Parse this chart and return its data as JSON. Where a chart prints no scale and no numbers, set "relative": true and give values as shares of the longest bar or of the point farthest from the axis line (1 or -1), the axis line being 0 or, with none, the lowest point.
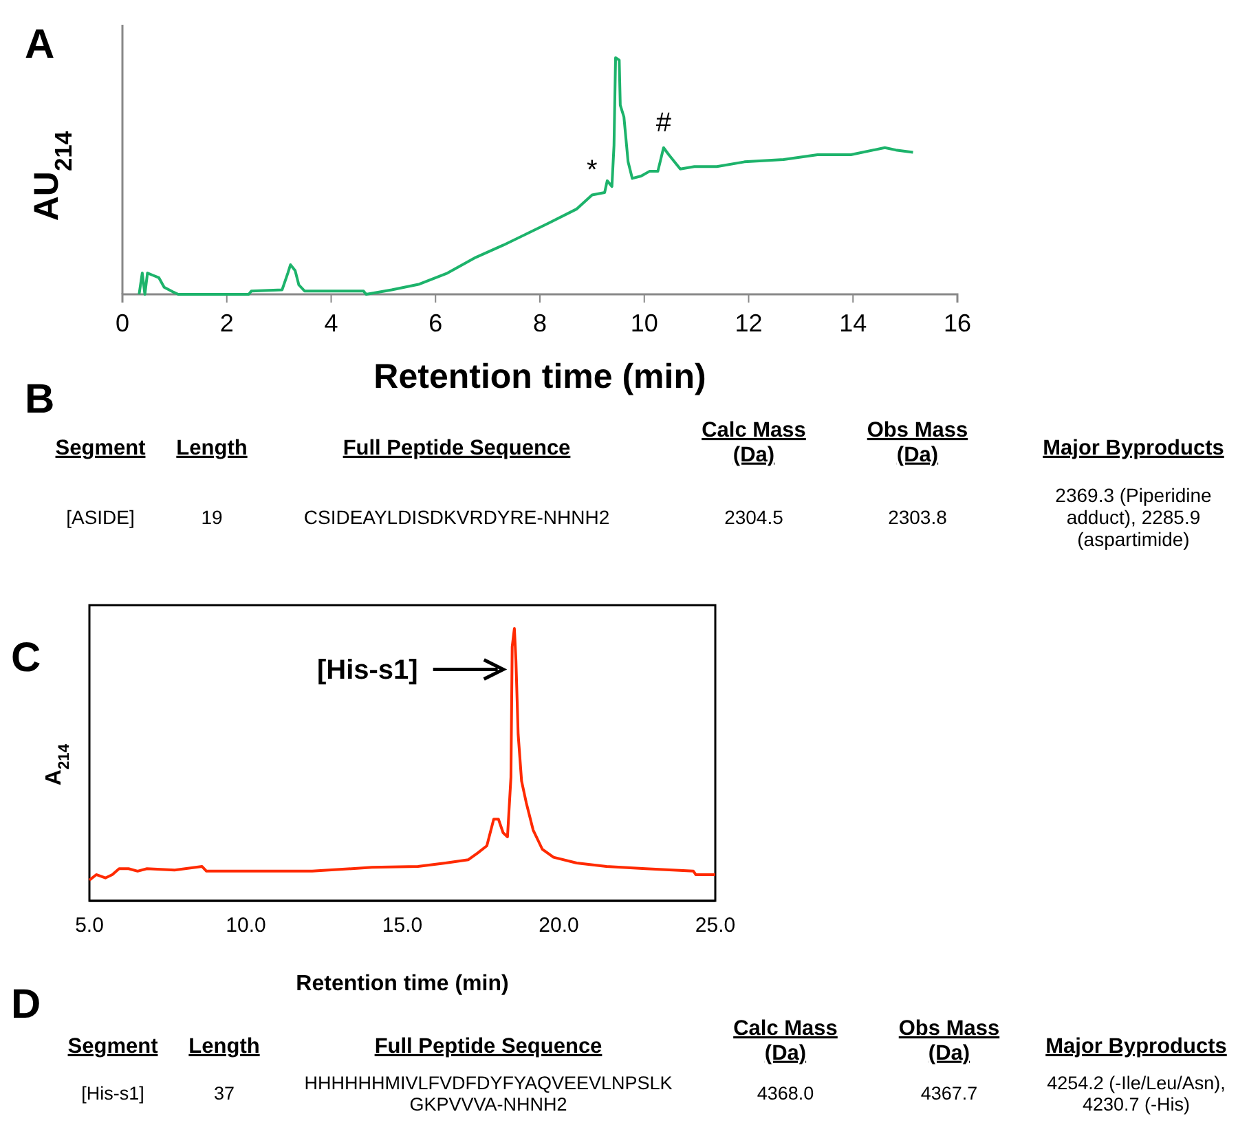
{
  "chart_data": [
    {
      "type": "line",
      "title": "A",
      "xlabel": "Retention time (min)",
      "ylabel": "AU$_{214}$",
      "relative": true,
      "tick_labels": "x",
      "xlim": [
        0,
        16
      ],
      "xticks": [
        0,
        2,
        4,
        6,
        8,
        10,
        12,
        14,
        16
      ],
      "series": [
        {
          "color": "#1db36b",
          "x": [
            0.32,
            0.38,
            0.43,
            0.48,
            0.59,
            0.7,
            0.8,
            0.97,
            1.07,
            2.42,
            2.47,
            3.06,
            3.17,
            3.22,
            3.31,
            3.38,
            3.49,
            4.62,
            4.67,
            5.16,
            5.69,
            6.23,
            6.77,
            7.3,
            7.74,
            8.16,
            8.7,
            9.0,
            9.24,
            9.29,
            9.38,
            9.42,
            9.45,
            9.52,
            9.54,
            9.61,
            9.69,
            9.77,
            9.94,
            10.1,
            10.26,
            10.37,
            10.47,
            10.69,
            10.96,
            11.39,
            11.92,
            12.67,
            13.32,
            13.96,
            14.61,
            14.82,
            15.15
          ],
          "values": [
            0,
            0.09,
            0,
            0.09,
            0.08,
            0.07,
            0.03,
            0.01,
            0,
            0,
            0.014,
            0.019,
            0.09,
            0.125,
            0.1,
            0.04,
            0.014,
            0.014,
            0,
            0.019,
            0.043,
            0.09,
            0.156,
            0.208,
            0.255,
            0.3,
            0.36,
            0.42,
            0.43,
            0.48,
            0.456,
            0.63,
            1.0,
            0.99,
            0.8,
            0.75,
            0.56,
            0.49,
            0.5,
            0.52,
            0.52,
            0.62,
            0.59,
            0.53,
            0.54,
            0.54,
            0.56,
            0.57,
            0.59,
            0.59,
            0.62,
            0.61,
            0.6
          ]
        }
      ],
      "annotations": [
        {
          "text": "*",
          "x": 9.0,
          "y": 0.42
        },
        {
          "text": "#",
          "x": 10.37,
          "y": 0.62
        }
      ]
    },
    {
      "type": "other",
      "title": "B",
      "annotations": [
        "Segment",
        "Length",
        "Full Peptide Sequence",
        "Calc Mass\n(Da)",
        "Obs Mass\n(Da)",
        "Major Byproducts",
        "[ASIDE]",
        "19",
        "CSIDEAYLDISDKVRDYRE-NHNH2",
        "2304.5",
        "2303.8",
        "2369.3 (Piperidine\nadduct), 2285.9\n(aspartimide)"
      ]
    },
    {
      "type": "line",
      "title": "C",
      "xlabel": "Retention time (min)",
      "ylabel": "A$_{214}$",
      "relative": true,
      "tick_labels": "x",
      "xlim": [
        5,
        25
      ],
      "xticks": [
        {
          "value": 5,
          "label": "5.0"
        },
        {
          "value": 10,
          "label": "10.0"
        },
        {
          "value": 15,
          "label": "15.0"
        },
        {
          "value": 20,
          "label": "20.0"
        },
        {
          "value": 25,
          "label": "25.0"
        }
      ],
      "series": [
        {
          "color": "#ff2a00",
          "x": [
            5.0,
            5.22,
            5.51,
            5.73,
            5.95,
            6.25,
            6.54,
            6.84,
            7.72,
            8.6,
            8.74,
            12.12,
            14.03,
            15.5,
            16.38,
            17.11,
            17.41,
            17.7,
            17.92,
            18.07,
            18.22,
            18.36,
            18.47,
            18.51,
            18.58,
            18.63,
            18.7,
            18.81,
            18.96,
            19.18,
            19.47,
            19.83,
            20.57,
            21.52,
            22.77,
            24.3,
            24.38,
            25.0
          ],
          "values": [
            0.076,
            0.096,
            0.084,
            0.096,
            0.118,
            0.118,
            0.109,
            0.118,
            0.113,
            0.126,
            0.109,
            0.109,
            0.123,
            0.126,
            0.139,
            0.151,
            0.176,
            0.202,
            0.3,
            0.3,
            0.25,
            0.235,
            0.454,
            0.933,
            1.0,
            0.882,
            0.613,
            0.44,
            0.36,
            0.26,
            0.19,
            0.16,
            0.139,
            0.126,
            0.118,
            0.109,
            0.096,
            0.096
          ]
        }
      ],
      "annotations": [
        {
          "text": "[His-s1]",
          "x": 18.4,
          "y": 0.85
        }
      ]
    },
    {
      "type": "other",
      "title": "D",
      "annotations": [
        "Segment",
        "Length",
        "Full Peptide Sequence",
        "Calc Mass\n(Da)",
        "Obs Mass\n(Da)",
        "Major Byproducts",
        "[His-s1]",
        "37",
        "HHHHHHMIVLFVDFDYFYAQVEEVLNPSLK\nGKPVVVA-NHNH2",
        "4368.0",
        "4367.7",
        "4254.2 (-Ile/Leu/Asn),\n4230.7 (-His)"
      ]
    }
  ]
}
